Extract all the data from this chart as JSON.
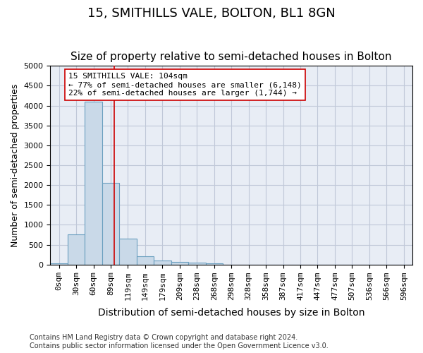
{
  "title": "15, SMITHILLS VALE, BOLTON, BL1 8GN",
  "subtitle": "Size of property relative to semi-detached houses in Bolton",
  "xlabel": "Distribution of semi-detached houses by size in Bolton",
  "ylabel": "Number of semi-detached properties",
  "bin_labels": [
    "0sqm",
    "30sqm",
    "60sqm",
    "89sqm",
    "119sqm",
    "149sqm",
    "179sqm",
    "209sqm",
    "238sqm",
    "268sqm",
    "298sqm",
    "328sqm",
    "358sqm",
    "387sqm",
    "417sqm",
    "447sqm",
    "477sqm",
    "507sqm",
    "536sqm",
    "566sqm",
    "596sqm"
  ],
  "bar_values": [
    30,
    760,
    4100,
    2050,
    650,
    200,
    100,
    60,
    40,
    30,
    0,
    0,
    0,
    0,
    0,
    0,
    0,
    0,
    0,
    0,
    0
  ],
  "bar_color": "#c9d9e8",
  "bar_edge_color": "#6a9fbf",
  "ylim": [
    0,
    5000
  ],
  "yticks": [
    0,
    500,
    1000,
    1500,
    2000,
    2500,
    3000,
    3500,
    4000,
    4500,
    5000
  ],
  "property_line_x": 3.2,
  "property_line_color": "#cc0000",
  "annotation_box_color": "#ffffff",
  "annotation_box_edge_color": "#cc0000",
  "annotation_text_line1": "15 SMITHILLS VALE: 104sqm",
  "annotation_text_line2": "← 77% of semi-detached houses are smaller (6,148)",
  "annotation_text_line3": "22% of semi-detached houses are larger (1,744) →",
  "footer_text": "Contains HM Land Registry data © Crown copyright and database right 2024.\nContains public sector information licensed under the Open Government Licence v3.0.",
  "background_color": "#ffffff",
  "grid_color": "#c0c8d8",
  "title_fontsize": 13,
  "subtitle_fontsize": 11,
  "axis_label_fontsize": 9,
  "xlabel_fontsize": 10,
  "tick_fontsize": 8,
  "annotation_fontsize": 8,
  "footer_fontsize": 7
}
